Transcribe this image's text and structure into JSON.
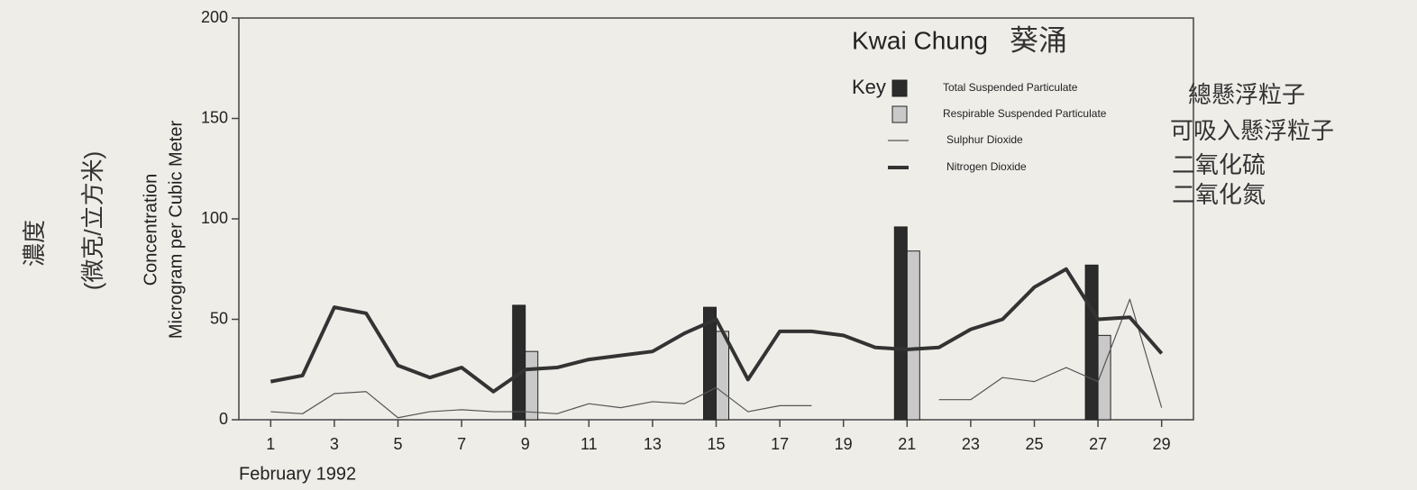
{
  "chart_data": {
    "type": "combo",
    "title": "Kwai Chung",
    "title_chinese": "葵涌",
    "legend_title": "Key",
    "ylabel": [
      "Concentration",
      "Microgram per Cubic Meter"
    ],
    "ylabel_chinese": [
      "濃度",
      "(微克/立方米)"
    ],
    "xlabel": "February 1992",
    "xlim": [
      0,
      30
    ],
    "xticks": [
      1,
      3,
      5,
      7,
      9,
      11,
      13,
      15,
      17,
      19,
      21,
      23,
      25,
      27,
      29
    ],
    "ylim": [
      0,
      200
    ],
    "yticks": [
      0,
      50,
      100,
      150,
      200
    ],
    "series": [
      {
        "name": "Total Suspended Particulate",
        "name_chinese": "總懸浮粒子",
        "type": "bar",
        "color": "#2b2b2b",
        "x": [
          9,
          15,
          21,
          27
        ],
        "values": [
          57,
          56,
          96,
          77
        ]
      },
      {
        "name": "Respirable Suspended Particulate",
        "name_chinese": "可吸入懸浮粒子",
        "type": "bar",
        "color": "#c9c9c9",
        "x": [
          9,
          15,
          21,
          27
        ],
        "values": [
          34,
          44,
          84,
          42
        ]
      },
      {
        "name": "Sulphur Dioxide",
        "name_chinese": "二氧化硫",
        "type": "line",
        "color": "#555555",
        "linewidth": 1.2,
        "x": [
          1,
          2,
          3,
          4,
          5,
          6,
          7,
          8,
          9,
          10,
          11,
          12,
          13,
          14,
          15,
          16,
          17,
          18,
          19,
          20,
          21,
          22,
          23,
          24,
          25,
          26,
          27,
          28,
          29
        ],
        "values": [
          4,
          3,
          13,
          14,
          1,
          4,
          5,
          4,
          4,
          3,
          8,
          6,
          9,
          8,
          16,
          4,
          7,
          7,
          null,
          null,
          null,
          10,
          10,
          21,
          19,
          26,
          19,
          60,
          6
        ]
      },
      {
        "name": "Nitrogen Dioxide",
        "name_chinese": "二氧化氮",
        "type": "line",
        "color": "#333333",
        "linewidth": 4,
        "x": [
          1,
          2,
          3,
          4,
          5,
          6,
          7,
          8,
          9,
          10,
          11,
          12,
          13,
          14,
          15,
          16,
          17,
          18,
          19,
          20,
          21,
          22,
          23,
          24,
          25,
          26,
          27,
          28,
          29
        ],
        "values": [
          19,
          22,
          56,
          53,
          27,
          21,
          26,
          14,
          25,
          26,
          30,
          32,
          34,
          43,
          50,
          20,
          44,
          44,
          42,
          36,
          35,
          36,
          45,
          50,
          66,
          75,
          50,
          51,
          33
        ]
      }
    ]
  }
}
